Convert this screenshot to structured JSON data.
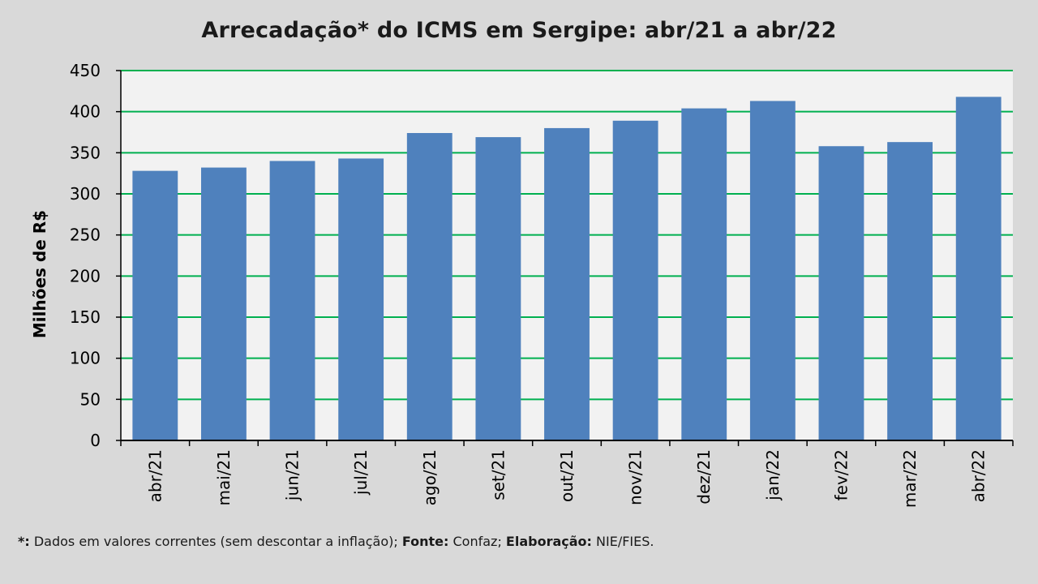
{
  "chart_data": {
    "type": "bar",
    "title": "Arrecadação* do ICMS em Sergipe: abr/21 a abr/22",
    "xlabel": "",
    "ylabel": "Milhões de R$",
    "ylim": [
      0,
      450
    ],
    "yticks": [
      0,
      50,
      100,
      150,
      200,
      250,
      300,
      350,
      400,
      450
    ],
    "grid": true,
    "categories": [
      "abr/21",
      "mai/21",
      "jun/21",
      "jul/21",
      "ago/21",
      "set/21",
      "out/21",
      "nov/21",
      "dez/21",
      "jan/22",
      "fev/22",
      "mar/22",
      "abr/22"
    ],
    "values": [
      328,
      332,
      340,
      343,
      374,
      369,
      380,
      389,
      404,
      413,
      358,
      363,
      418
    ],
    "colors": {
      "bar": "#4f81bd",
      "grid": "#00b050",
      "plot_bg": "#f2f2f2",
      "page_bg": "#d9d9d9"
    }
  },
  "footnote": {
    "marker": "*:",
    "text1": " Dados em valores correntes (sem descontar a inflação); ",
    "fonte_label": "Fonte:",
    "fonte_value": " Confaz; ",
    "elab_label": "Elaboração:",
    "elab_value": " NIE/FIES."
  }
}
